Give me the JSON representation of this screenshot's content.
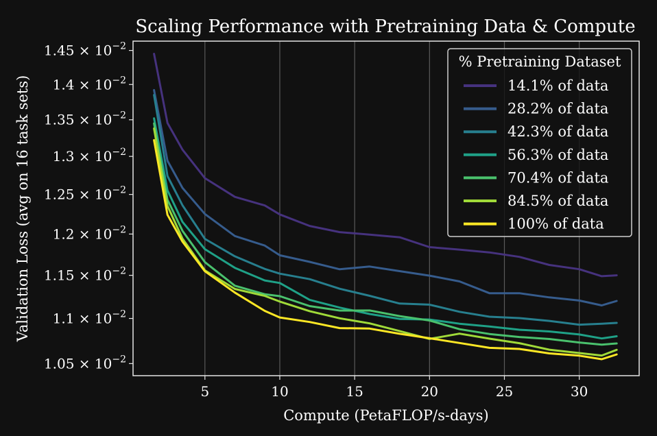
{
  "chart_data": {
    "type": "line",
    "title": "Scaling Performance with Pretraining Data & Compute",
    "xlabel": "Compute (PetaFLOP/s-days)",
    "ylabel": "Validation Loss (avg on 16 task sets)",
    "xlim": [
      0.2,
      34
    ],
    "ylim": [
      0.01037,
      0.01464
    ],
    "y_scale": "log",
    "grid": "vertical lines at x ticks",
    "x_ticks": [
      {
        "value": 5,
        "label": "5"
      },
      {
        "value": 10,
        "label": "10"
      },
      {
        "value": 15,
        "label": "15"
      },
      {
        "value": 20,
        "label": "20"
      },
      {
        "value": 25,
        "label": "25"
      },
      {
        "value": 30,
        "label": "30"
      }
    ],
    "y_ticks": [
      {
        "value": 0.0105,
        "mant": "1.05",
        "exp": "−2"
      },
      {
        "value": 0.011,
        "mant": "1.1",
        "exp": "−2"
      },
      {
        "value": 0.0115,
        "mant": "1.15",
        "exp": "−2"
      },
      {
        "value": 0.012,
        "mant": "1.2",
        "exp": "−2"
      },
      {
        "value": 0.0125,
        "mant": "1.25",
        "exp": "−2"
      },
      {
        "value": 0.013,
        "mant": "1.3",
        "exp": "−2"
      },
      {
        "value": 0.0135,
        "mant": "1.35",
        "exp": "−2"
      },
      {
        "value": 0.014,
        "mant": "1.4",
        "exp": "−2"
      },
      {
        "value": 0.0145,
        "mant": "1.45",
        "exp": "−2"
      }
    ],
    "tick_times": "×",
    "tick_base": "10",
    "legend": {
      "title": "% Pretraining Dataset",
      "position": "top-right"
    },
    "series": [
      {
        "name": "14.1% of data",
        "color": "#46327e",
        "x": [
          1.6,
          2.5,
          3.5,
          5,
          7,
          9,
          10,
          12,
          14,
          16,
          18,
          20,
          22,
          24,
          26,
          28,
          30,
          31.5,
          32.5
        ],
        "y": [
          0.01445,
          0.01345,
          0.0131,
          0.0127,
          0.01248,
          0.01235,
          0.01225,
          0.0121,
          0.01202,
          0.012,
          0.01195,
          0.01185,
          0.0118,
          0.01178,
          0.01172,
          0.01162,
          0.01158,
          0.01148,
          0.0115
        ]
      },
      {
        "name": "28.2% of data",
        "color": "#365c8d",
        "x": [
          1.6,
          2.5,
          3.5,
          5,
          7,
          9,
          10,
          12,
          14,
          16,
          18,
          20,
          22,
          24,
          26,
          28,
          30,
          31.5,
          32.5
        ],
        "y": [
          0.01392,
          0.01295,
          0.01258,
          0.01225,
          0.01198,
          0.01185,
          0.01175,
          0.01165,
          0.01158,
          0.0116,
          0.01155,
          0.0115,
          0.01142,
          0.0113,
          0.01128,
          0.01125,
          0.0112,
          0.01115,
          0.0112
        ]
      },
      {
        "name": "42.3% of data",
        "color": "#277f8e",
        "x": [
          1.6,
          2.5,
          3.5,
          5,
          7,
          9,
          10,
          12,
          14,
          16,
          18,
          20,
          22,
          24,
          26,
          28,
          30,
          31.5,
          32.5
        ],
        "y": [
          0.01385,
          0.01275,
          0.01235,
          0.01195,
          0.01172,
          0.01158,
          0.01152,
          0.01145,
          0.01135,
          0.01125,
          0.01118,
          0.01115,
          0.01108,
          0.01102,
          0.011,
          0.01098,
          0.01092,
          0.01095,
          0.01095
        ]
      },
      {
        "name": "56.3% of data",
        "color": "#1fa187",
        "x": [
          1.6,
          2.5,
          3.5,
          5,
          7,
          9,
          10,
          12,
          14,
          16,
          18,
          20,
          22,
          24,
          26,
          28,
          30,
          31.5,
          32.5
        ],
        "y": [
          0.01352,
          0.01255,
          0.01215,
          0.01182,
          0.01158,
          0.01145,
          0.0114,
          0.01122,
          0.01112,
          0.01105,
          0.011,
          0.01098,
          0.01095,
          0.0109,
          0.01088,
          0.01085,
          0.01082,
          0.01078,
          0.0108
        ]
      },
      {
        "name": "70.4% of data",
        "color": "#4ac16d",
        "x": [
          1.6,
          2.5,
          3.5,
          5,
          7,
          9,
          10,
          12,
          14,
          16,
          18,
          20,
          22,
          24,
          26,
          28,
          30,
          31.5,
          32.5
        ],
        "y": [
          0.01345,
          0.01242,
          0.01205,
          0.01165,
          0.01138,
          0.01128,
          0.01125,
          0.01115,
          0.01108,
          0.0111,
          0.01102,
          0.01098,
          0.01088,
          0.01082,
          0.0108,
          0.01076,
          0.01074,
          0.0107,
          0.01072
        ]
      },
      {
        "name": "84.5% of data",
        "color": "#a0da39",
        "x": [
          1.6,
          2.5,
          3.5,
          5,
          7,
          9,
          10,
          12,
          14,
          16,
          18,
          20,
          22,
          24,
          26,
          28,
          30,
          31.5,
          32.5
        ],
        "y": [
          0.01338,
          0.01235,
          0.01195,
          0.01155,
          0.01135,
          0.01125,
          0.0112,
          0.01108,
          0.011,
          0.01095,
          0.01085,
          0.01078,
          0.01082,
          0.01078,
          0.01072,
          0.01065,
          0.01062,
          0.01058,
          0.01065
        ]
      },
      {
        "name": "100% of data",
        "color": "#fde725",
        "x": [
          1.6,
          2.5,
          3.5,
          5,
          7,
          9,
          10,
          12,
          14,
          16,
          18,
          20,
          22,
          24,
          26,
          28,
          30,
          31.5,
          32.5
        ],
        "y": [
          0.01322,
          0.01225,
          0.0119,
          0.01155,
          0.0113,
          0.01108,
          0.01102,
          0.01095,
          0.0109,
          0.01088,
          0.01083,
          0.01078,
          0.01072,
          0.01068,
          0.01065,
          0.01062,
          0.01058,
          0.01055,
          0.0106
        ]
      }
    ]
  }
}
